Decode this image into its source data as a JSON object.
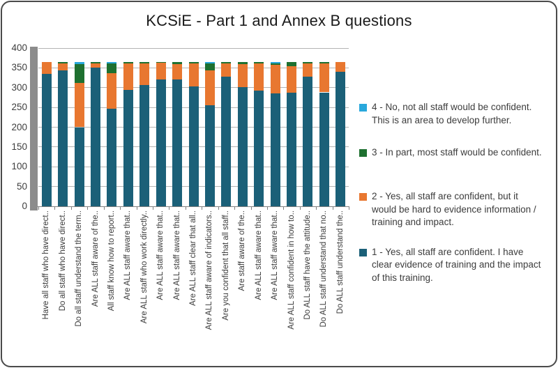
{
  "chart_data": {
    "type": "bar",
    "stacked": true,
    "title": "KCSiE - Part 1 and Annex B questions",
    "xlabel": "",
    "ylabel": "",
    "ylim": [
      0,
      400
    ],
    "yticks": [
      0,
      50,
      100,
      150,
      200,
      250,
      300,
      350,
      400
    ],
    "grid": true,
    "legend_position": "right",
    "categories": [
      "Have all staff who have direct..",
      "Do all staff who have direct..",
      "Do all staff understand the term..",
      "Are ALL staff aware of the..",
      "All staff know how to report..",
      "Are ALL staff aware that..",
      "Are ALL staff who work directly..",
      "Are ALL staff aware that..",
      "Are ALL staff aware that..",
      "Are ALL staff clear that all..",
      "Are ALL staff aware of indicators..",
      "Are you confident that all staff..",
      "Are staff aware of the..",
      "Are ALL staff aware that..",
      "Are ALL staff aware that..",
      "Are ALL staff confident in how to..",
      "Do ALL staff have the attitude..",
      "Do ALL staff understand that no..",
      "Do ALL staff understand the.."
    ],
    "series": [
      {
        "name": "1 - Yes, all staff are confident. I have clear evidence of training and the impact of this training.",
        "color": "#1B6078",
        "values": [
          335,
          343,
          200,
          350,
          246,
          295,
          306,
          320,
          320,
          303,
          255,
          328,
          302,
          293,
          286,
          287,
          328,
          288,
          340
        ]
      },
      {
        "name": "2 - Yes, all staff are confident, but it would be hard to evidence information / training and impact.",
        "color": "#E87730",
        "values": [
          30,
          19,
          112,
          11,
          90,
          66,
          55,
          43,
          40,
          58,
          88,
          33,
          58,
          68,
          72,
          67,
          34,
          73,
          25
        ]
      },
      {
        "name": "3 - In part, most staff would be confident.",
        "color": "#1E7030",
        "values": [
          0,
          3,
          48,
          4,
          25,
          4,
          4,
          2,
          5,
          4,
          18,
          4,
          5,
          4,
          4,
          11,
          3,
          4,
          0
        ]
      },
      {
        "name": "4 - No, not all staff would be confident. This is an area to develop further.",
        "color": "#29A8DC",
        "values": [
          0,
          0,
          5,
          0,
          4,
          0,
          0,
          0,
          0,
          0,
          4,
          0,
          0,
          0,
          3,
          0,
          0,
          0,
          0
        ]
      }
    ]
  },
  "legend": {
    "items": [
      {
        "label": "4 - No, not all staff would be confident. This is an area to develop further.",
        "color": "#29A8DC"
      },
      {
        "label": "3 - In part, most staff would be confident.",
        "color": "#1E7030"
      },
      {
        "label": "2 - Yes, all staff are confident, but it would be hard to evidence information / training and impact.",
        "color": "#E87730"
      },
      {
        "label": "1 - Yes, all staff are confident. I have clear evidence of training and the impact of this training.",
        "color": "#1B6078"
      }
    ]
  },
  "colors": {
    "gridline": "#B3B3B3",
    "axis": "#808080",
    "wall": "#8C8C8C",
    "text": "#3A3A3A",
    "border": "#4A4A4A"
  }
}
